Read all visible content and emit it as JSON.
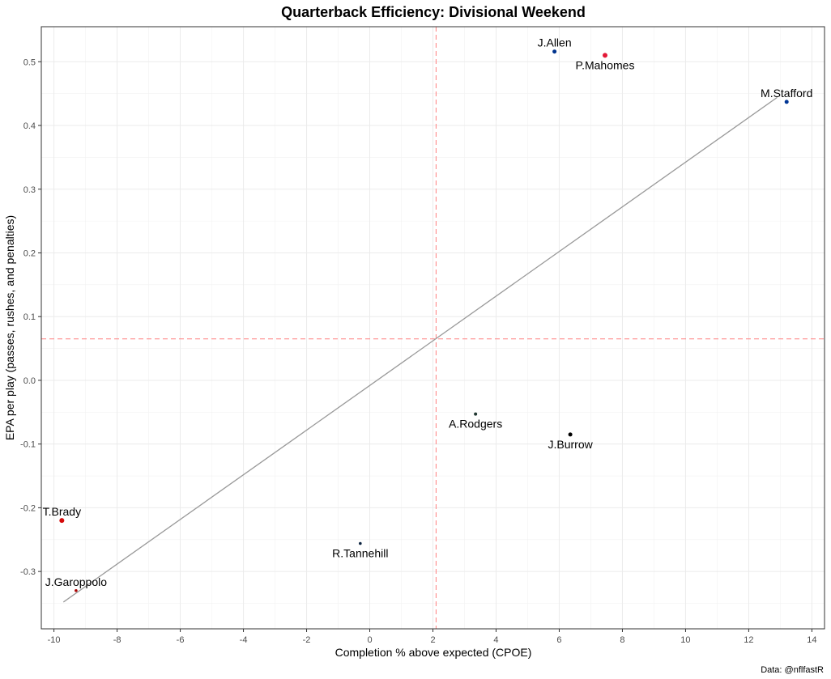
{
  "chart_data": {
    "type": "scatter",
    "title": "Quarterback Efficiency: Divisional Weekend",
    "xlabel": "Completion % above expected (CPOE)",
    "ylabel": "EPA per play (passes, rushes, and penalties)",
    "caption": "Data: @nflfastR",
    "xlim": [
      -10.4,
      14.4
    ],
    "ylim": [
      -0.39,
      0.555
    ],
    "x_ticks": [
      -10,
      -8,
      -6,
      -4,
      -2,
      0,
      2,
      4,
      6,
      8,
      10,
      12,
      14
    ],
    "y_ticks": [
      -0.3,
      -0.2,
      -0.1,
      0.0,
      0.1,
      0.2,
      0.3,
      0.4,
      0.5
    ],
    "x_tick_labels": [
      "-10",
      "-8",
      "-6",
      "-4",
      "-2",
      "0",
      "2",
      "4",
      "6",
      "8",
      "10",
      "12",
      "14"
    ],
    "y_tick_labels": [
      "-0.3",
      "-0.2",
      "-0.1",
      "0.0",
      "0.1",
      "0.2",
      "0.3",
      "0.4",
      "0.5"
    ],
    "grid": true,
    "mean_lines": {
      "x": 2.1,
      "y": 0.065,
      "color": "#ff8080"
    },
    "trend_line": {
      "x": [
        -9.7,
        12.9
      ],
      "y": [
        -0.348,
        0.444
      ],
      "color": "#999999"
    },
    "points": [
      {
        "label": "J.Allen",
        "x": 5.85,
        "y": 0.516,
        "color": "#00338d",
        "size": 2.5,
        "label_pos": "above"
      },
      {
        "label": "P.Mahomes",
        "x": 7.45,
        "y": 0.51,
        "color": "#e31837",
        "size": 3,
        "label_pos": "below"
      },
      {
        "label": "M.Stafford",
        "x": 13.2,
        "y": 0.437,
        "color": "#003594",
        "size": 2.5,
        "label_pos": "above"
      },
      {
        "label": "A.Rodgers",
        "x": 3.35,
        "y": -0.053,
        "color": "#203731",
        "size": 2,
        "label_pos": "below"
      },
      {
        "label": "J.Burrow",
        "x": 6.35,
        "y": -0.085,
        "color": "#000000",
        "size": 2.5,
        "label_pos": "below"
      },
      {
        "label": "T.Brady",
        "x": -9.75,
        "y": -0.22,
        "color": "#d50a0a",
        "size": 3,
        "label_pos": "above"
      },
      {
        "label": "R.Tannehill",
        "x": -0.3,
        "y": -0.256,
        "color": "#0c2340",
        "size": 1.8,
        "label_pos": "below"
      },
      {
        "label": "J.Garoppolo",
        "x": -9.3,
        "y": -0.33,
        "color": "#aa0000",
        "size": 1.8,
        "label_pos": "above"
      }
    ]
  }
}
